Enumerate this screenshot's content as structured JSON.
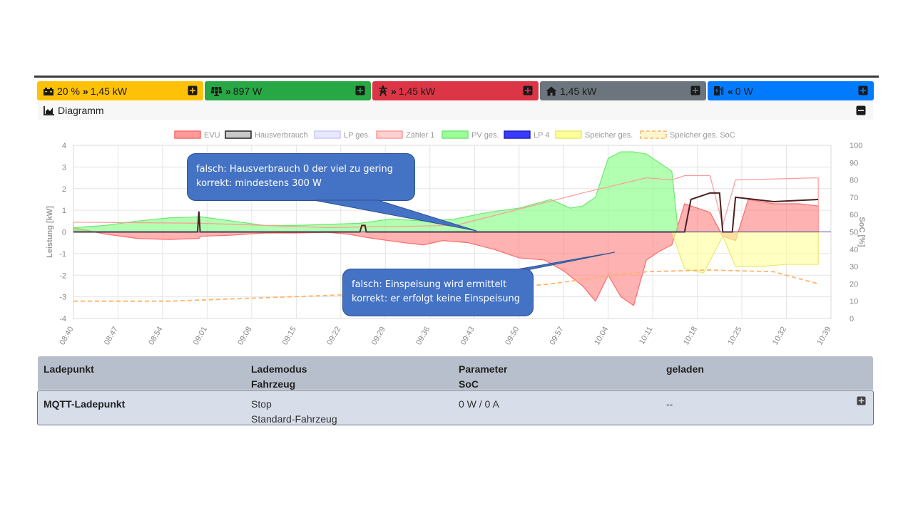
{
  "tiles": [
    {
      "id": "battery",
      "pct": "20 %",
      "arrow": "»",
      "value": "1,45 kW",
      "bg": "#ffc107",
      "fg": "#1a1a1a",
      "icon": "car-battery-icon"
    },
    {
      "id": "pv",
      "arrow": "»",
      "value": "897 W",
      "bg": "#28a745",
      "fg": "#ffffff",
      "icon": "solar-panel-icon"
    },
    {
      "id": "grid",
      "arrow": "»",
      "value": "1,45 kW",
      "bg": "#dc3545",
      "fg": "#ffffff",
      "icon": "power-pole-icon"
    },
    {
      "id": "house",
      "value": "1,45 kW",
      "bg": "#6c757d",
      "fg": "#ffffff",
      "icon": "home-icon"
    },
    {
      "id": "charge",
      "arrow": "«",
      "value": "0 W",
      "bg": "#007bff",
      "fg": "#ffffff",
      "icon": "charging-station-icon"
    }
  ],
  "diagram": {
    "title": "Diagramm"
  },
  "chart_data": {
    "type": "area",
    "legend": [
      "EVU",
      "Hausverbrauch",
      "LP ges.",
      "Zähler 1",
      "PV ges.",
      "LP 4",
      "Speicher ges.",
      "Speicher ges. SoC"
    ],
    "ylabel": "Leistung [kW]",
    "y2label": "SoC [%]",
    "ylim": [
      -4,
      4
    ],
    "y2lim": [
      0,
      100
    ],
    "yticks": [
      "4",
      "3",
      "2",
      "1",
      "0",
      "-1",
      "-2",
      "-3",
      "-4"
    ],
    "y2ticks": [
      "100",
      "90",
      "80",
      "70",
      "60",
      "50",
      "40",
      "30",
      "20",
      "10",
      "0"
    ],
    "xticks": [
      "08:40",
      "08:47",
      "08:54",
      "09:01",
      "09:08",
      "09:15",
      "09:22",
      "09:29",
      "09:36",
      "09:43",
      "09:50",
      "09:57",
      "10:04",
      "10:11",
      "10:18",
      "10:25",
      "10:32",
      "10:39"
    ],
    "series": [
      {
        "name": "EVU",
        "color": "#ff7f7f",
        "points": [
          [
            0,
            0.2
          ],
          [
            5,
            -0.1
          ],
          [
            10,
            -0.3
          ],
          [
            15,
            -0.35
          ],
          [
            19.7,
            -0.3
          ],
          [
            20,
            -0.2
          ],
          [
            25,
            -0.15
          ],
          [
            30,
            -0.05
          ],
          [
            35,
            -0.05
          ],
          [
            40,
            -0.02
          ],
          [
            43,
            -0.1
          ],
          [
            47,
            -0.3
          ],
          [
            52,
            -0.5
          ],
          [
            55,
            -0.6
          ],
          [
            58,
            -0.4
          ],
          [
            62,
            -0.5
          ],
          [
            66,
            -0.8
          ],
          [
            70,
            -1.2
          ],
          [
            74,
            -1.3
          ],
          [
            77,
            -1.8
          ],
          [
            80,
            -2.5
          ],
          [
            82,
            -3.2
          ],
          [
            84,
            -2.0
          ],
          [
            86,
            -3.0
          ],
          [
            88,
            -3.4
          ],
          [
            90,
            -1.3
          ],
          [
            92,
            -0.9
          ],
          [
            94,
            -0.6
          ],
          [
            96,
            1.3
          ],
          [
            98,
            1.1
          ],
          [
            100,
            0.9
          ],
          [
            102,
            -0.2
          ],
          [
            104,
            -0.4
          ],
          [
            106,
            1.5
          ],
          [
            110,
            1.3
          ],
          [
            114,
            1.3
          ],
          [
            117,
            1.2
          ]
        ]
      },
      {
        "name": "PV ges.",
        "color": "#7fff7f",
        "points": [
          [
            0,
            0.2
          ],
          [
            5,
            0.3
          ],
          [
            10,
            0.5
          ],
          [
            15,
            0.65
          ],
          [
            20,
            0.7
          ],
          [
            25,
            0.5
          ],
          [
            30,
            0.3
          ],
          [
            35,
            0.3
          ],
          [
            40,
            0.35
          ],
          [
            45,
            0.4
          ],
          [
            50,
            0.6
          ],
          [
            55,
            0.5
          ],
          [
            60,
            0.6
          ],
          [
            65,
            0.9
          ],
          [
            70,
            1.1
          ],
          [
            75,
            1.5
          ],
          [
            78,
            1.1
          ],
          [
            80,
            1.2
          ],
          [
            82,
            1.6
          ],
          [
            84,
            3.4
          ],
          [
            86,
            3.7
          ],
          [
            88,
            3.7
          ],
          [
            90,
            3.6
          ],
          [
            92,
            3.2
          ],
          [
            94,
            2.8
          ],
          [
            95,
            0.0
          ],
          [
            96,
            0.0
          ],
          [
            99,
            0.0
          ],
          [
            102,
            0.0
          ],
          [
            104,
            0.0
          ],
          [
            110,
            0.0
          ],
          [
            117,
            0.0
          ]
        ]
      },
      {
        "name": "Speicher ges.",
        "color": "#ffff99",
        "points": [
          [
            94,
            0.0
          ],
          [
            96,
            -1.7
          ],
          [
            99,
            -1.9
          ],
          [
            102,
            -0.2
          ],
          [
            104,
            -1.6
          ],
          [
            108,
            -1.6
          ],
          [
            112,
            -1.5
          ],
          [
            117,
            -1.5
          ]
        ]
      },
      {
        "name": "Zähler 1",
        "color": "#ffb3b3",
        "points": [
          [
            0,
            0.45
          ],
          [
            20,
            0.4
          ],
          [
            40,
            0.2
          ],
          [
            60,
            0.3
          ],
          [
            80,
            1.8
          ],
          [
            90,
            2.5
          ],
          [
            94,
            2.4
          ],
          [
            96,
            2.6
          ],
          [
            100,
            2.6
          ],
          [
            102,
            0.3
          ],
          [
            104,
            2.4
          ],
          [
            117,
            2.5
          ]
        ]
      },
      {
        "name": "Hausverbrauch",
        "color": "#444444",
        "points": [
          [
            0,
            0.0
          ],
          [
            19.5,
            0.0
          ],
          [
            19.7,
            0.95
          ],
          [
            19.9,
            0.0
          ],
          [
            45,
            0.0
          ],
          [
            45.3,
            0.3
          ],
          [
            45.8,
            0.3
          ],
          [
            46,
            0.0
          ],
          [
            96,
            0.0
          ],
          [
            97,
            1.5
          ],
          [
            100,
            1.8
          ],
          [
            101.5,
            1.8
          ],
          [
            102,
            0.0
          ],
          [
            103.5,
            0.0
          ],
          [
            104,
            1.6
          ],
          [
            110,
            1.4
          ],
          [
            117,
            1.5
          ]
        ]
      },
      {
        "name": "Speicher ges. SoC",
        "color": "#ffb366",
        "points": [
          [
            0,
            10
          ],
          [
            15,
            10
          ],
          [
            30,
            12
          ],
          [
            45,
            14
          ],
          [
            60,
            15
          ],
          [
            75,
            20
          ],
          [
            85,
            25
          ],
          [
            90,
            27
          ],
          [
            100,
            28
          ],
          [
            110,
            27
          ],
          [
            117,
            20
          ]
        ]
      }
    ]
  },
  "callouts": [
    {
      "line1": "falsch: Hausverbrauch 0 der viel zu gering",
      "line2": "korrekt:  mindestens 300 W"
    },
    {
      "line1": "falsch: Einspeisung wird ermittelt",
      "line2": "korrekt:  er erfolgt keine  Einspeisung"
    }
  ],
  "table": {
    "headers": {
      "col1": "Ladepunkt",
      "col2a": "Lademodus",
      "col2b": "Fahrzeug",
      "col3a": "Parameter",
      "col3b": "SoC",
      "col4": "geladen"
    },
    "row": {
      "ladepunkt": "MQTT-Ladepunkt",
      "lademodus": "Stop",
      "fahrzeug": "Standard-Fahrzeug",
      "parameter": "0 W / 0 A",
      "geladen": "--"
    }
  }
}
